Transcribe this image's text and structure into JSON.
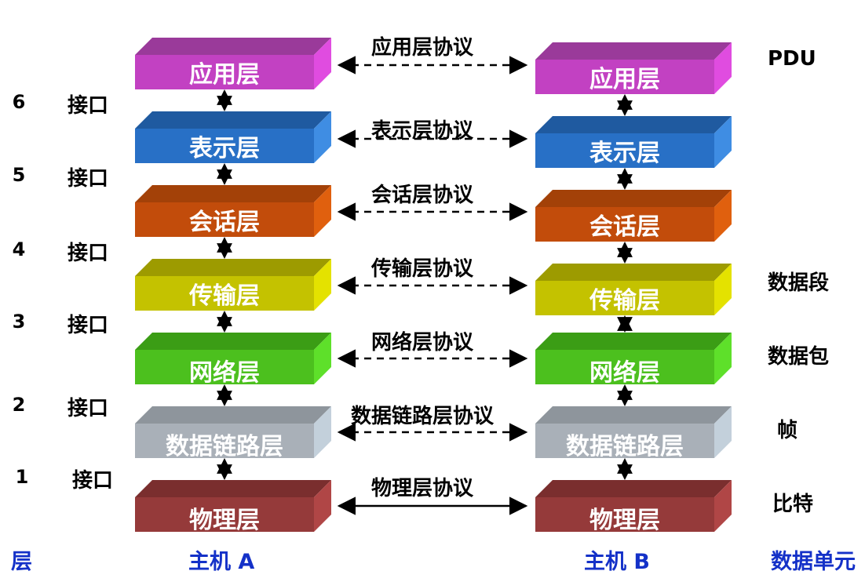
{
  "layers": [
    {
      "name": "应用层",
      "protocol": "应用层协议",
      "pdu": "PDU",
      "front": "#c241c2",
      "top": "#9a3a9a",
      "side": "#e04ce0",
      "text": "#ffffff",
      "link": "dashed"
    },
    {
      "name": "表示层",
      "protocol": "表示层协议",
      "pdu": "",
      "front": "#2870c6",
      "top": "#1f5aa0",
      "side": "#3f8de3",
      "text": "#ffffff",
      "link": "dashed"
    },
    {
      "name": "会话层",
      "protocol": "会话层协议",
      "pdu": "",
      "front": "#c24c0b",
      "top": "#a34108",
      "side": "#e0600e",
      "text": "#ffffff",
      "link": "dashed"
    },
    {
      "name": "传输层",
      "protocol": "传输层协议",
      "pdu": "数据段",
      "front": "#c4c200",
      "top": "#9d9b00",
      "side": "#e4e200",
      "text": "#ffffff",
      "link": "dashed"
    },
    {
      "name": "网络层",
      "protocol": "网络层协议",
      "pdu": "数据包",
      "front": "#4cc01e",
      "top": "#3b9d15",
      "side": "#5ee02a",
      "text": "#ffffff",
      "link": "dashed"
    },
    {
      "name": "数据链路层",
      "protocol": "数据链路层协议",
      "pdu": "帧",
      "front": "#a9b0b8",
      "top": "#8e959c",
      "side": "#c3d0db",
      "text": "#ffffff",
      "link": "dashed"
    },
    {
      "name": "物理层",
      "protocol": "物理层协议",
      "pdu": "比特",
      "front": "#953a3a",
      "top": "#7a2e2e",
      "side": "#b04646",
      "text": "#ffffff",
      "link": "solid"
    }
  ],
  "interfaces": [
    {
      "number": "6",
      "label": "接口"
    },
    {
      "number": "5",
      "label": "接口"
    },
    {
      "number": "4",
      "label": "接口"
    },
    {
      "number": "3",
      "label": "接口"
    },
    {
      "number": "2",
      "label": "接口"
    },
    {
      "number": "1",
      "label": "接口"
    }
  ],
  "footer": {
    "layer_label": "层",
    "host_a": "主机 A",
    "host_b": "主机 B",
    "unit_label": "数据单元"
  },
  "colors": {
    "footer_text": "#1431c8",
    "arrow": "#000000"
  }
}
